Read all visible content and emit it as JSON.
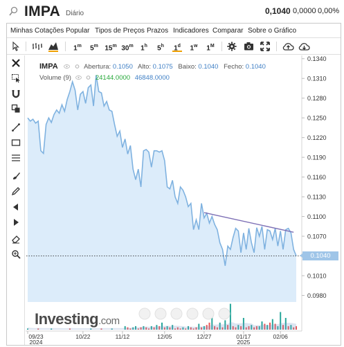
{
  "header": {
    "symbol": "IMPA",
    "period": "Diário",
    "last": "0,1040",
    "change": "0,0000",
    "change_pct": "0,00%"
  },
  "menu": [
    "Minhas Cotações",
    "Popular",
    "Tipos de Preços",
    "Prazos",
    "Indicadores",
    "Comparar",
    "Sobre o Gráfico"
  ],
  "toolbar": {
    "intervals": [
      {
        "n": "1",
        "u": "m"
      },
      {
        "n": "5",
        "u": "m"
      },
      {
        "n": "15",
        "u": "m"
      },
      {
        "n": "30",
        "u": "m"
      },
      {
        "n": "1",
        "u": "h"
      },
      {
        "n": "5",
        "u": "h"
      },
      {
        "n": "1",
        "u": "d"
      },
      {
        "n": "1",
        "u": "w"
      },
      {
        "n": "1",
        "u": "M"
      }
    ],
    "active_interval": "1d"
  },
  "legend": {
    "name": "IMPA",
    "open_label": "Abertura:",
    "open": "0.1050",
    "high_label": "Alto:",
    "high": "0.1075",
    "low_label": "Baixo:",
    "low": "0.1040",
    "close_label": "Fecho:",
    "close": "0.1040",
    "volume_label": "Volume (9)",
    "volume_val1": "24144.0000",
    "volume_val2": "46848.0000"
  },
  "logo": {
    "main": "Investing",
    "suffix": ".com"
  },
  "price_tag": "0.1040",
  "colors": {
    "line": "#7fb2e0",
    "area": "#dcecfa",
    "volume_up": "#26a69a",
    "volume_down": "#ef5350",
    "trendline": "#7d6fb5",
    "price_tag": "#9fc5e8"
  },
  "chart_data": {
    "type": "area",
    "y_ticks": [
      "0.1340",
      "0.1310",
      "0.1280",
      "0.1250",
      "0.1220",
      "0.1190",
      "0.1160",
      "0.1130",
      "0.1100",
      "0.1070",
      "0.1040",
      "0.1010",
      "0.0980"
    ],
    "ylim": [
      0.097,
      0.1345
    ],
    "x_ticks": [
      {
        "label": "09/23",
        "sub": "2024",
        "x": 0
      },
      {
        "label": "10/22",
        "sub": "",
        "x": 21
      },
      {
        "label": "11/12",
        "sub": "",
        "x": 36
      },
      {
        "label": "12/05",
        "sub": "",
        "x": 52
      },
      {
        "label": "12/27",
        "sub": "",
        "x": 67
      },
      {
        "label": "01/17",
        "sub": "2025",
        "x": 82
      },
      {
        "label": "02/06",
        "sub": "",
        "x": 96
      }
    ],
    "x": [
      0,
      1,
      2,
      3,
      4,
      5,
      6,
      7,
      8,
      9,
      10,
      11,
      12,
      13,
      14,
      15,
      16,
      17,
      18,
      19,
      20,
      21,
      22,
      23,
      24,
      25,
      26,
      27,
      28,
      29,
      30,
      31,
      32,
      33,
      34,
      35,
      36,
      37,
      38,
      39,
      40,
      41,
      42,
      43,
      44,
      45,
      46,
      47,
      48,
      49,
      50,
      51,
      52,
      53,
      54,
      55,
      56,
      57,
      58,
      59,
      60,
      61,
      62,
      63,
      64,
      65,
      66,
      67,
      68,
      69,
      70,
      71,
      72,
      73,
      74,
      75,
      76,
      77,
      78,
      79,
      80,
      81,
      82,
      83,
      84,
      85,
      86,
      87,
      88,
      89,
      90,
      91,
      92,
      93,
      94,
      95,
      96,
      97,
      98,
      99,
      100,
      101,
      102
    ],
    "close": [
      0.125,
      0.1245,
      0.1248,
      0.1242,
      0.1245,
      0.12,
      0.1196,
      0.124,
      0.125,
      0.1243,
      0.1255,
      0.1262,
      0.1257,
      0.127,
      0.126,
      0.1278,
      0.129,
      0.1305,
      0.1292,
      0.1262,
      0.1286,
      0.129,
      0.1272,
      0.1296,
      0.13,
      0.1268,
      0.1315,
      0.129,
      0.1288,
      0.1268,
      0.1275,
      0.1262,
      0.126,
      0.124,
      0.1222,
      0.123,
      0.1205,
      0.1218,
      0.1195,
      0.1208,
      0.1172,
      0.1156,
      0.1172,
      0.1145,
      0.12,
      0.1202,
      0.1198,
      0.1175,
      0.12,
      0.12,
      0.1198,
      0.12,
      0.1185,
      0.1145,
      0.1142,
      0.1155,
      0.113,
      0.112,
      0.1145,
      0.114,
      0.113,
      0.1115,
      0.112,
      0.108,
      0.1095,
      0.108,
      0.112,
      0.1098,
      0.1105,
      0.109,
      0.11,
      0.1088,
      0.108,
      0.106,
      0.105,
      0.1025,
      0.1055,
      0.105,
      0.1068,
      0.1082,
      0.1078,
      0.1045,
      0.1075,
      0.105,
      0.1082,
      0.106,
      0.1045,
      0.1083,
      0.107,
      0.1085,
      0.105,
      0.108,
      0.1078,
      0.1065,
      0.1082,
      0.1055,
      0.1078,
      0.105,
      0.108,
      0.1082,
      0.1075,
      0.105,
      0.104
    ],
    "volume": [
      1,
      0,
      0,
      0,
      1,
      0,
      0,
      0,
      0,
      1,
      0,
      0,
      0,
      0,
      0,
      0,
      1,
      0,
      0,
      0,
      0,
      0,
      0,
      0,
      1,
      0,
      0,
      0,
      1,
      0,
      0,
      0,
      1,
      0,
      0,
      0,
      0,
      3,
      2,
      1,
      2,
      3,
      1,
      2,
      3,
      2,
      1,
      3,
      2,
      4,
      3,
      6,
      2,
      3,
      2,
      4,
      1,
      2,
      1,
      2,
      1,
      3,
      2,
      1,
      2,
      5,
      2,
      3,
      4,
      6,
      14,
      3,
      2,
      6,
      2,
      8,
      4,
      22,
      3,
      2,
      4,
      3,
      10,
      2,
      3,
      4,
      2,
      3,
      3,
      7,
      5,
      4,
      6,
      9,
      5,
      3,
      15,
      4,
      10,
      3,
      4,
      2,
      3
    ],
    "volume_up": [
      1,
      0,
      0,
      0,
      0,
      0,
      0,
      0,
      0,
      1,
      0,
      0,
      0,
      0,
      0,
      0,
      0,
      0,
      0,
      0,
      0,
      0,
      0,
      0,
      1,
      0,
      0,
      0,
      0,
      0,
      0,
      0,
      1,
      0,
      0,
      0,
      0,
      1,
      0,
      0,
      1,
      1,
      0,
      0,
      1,
      0,
      0,
      1,
      0,
      1,
      0,
      1,
      0,
      1,
      0,
      1,
      0,
      0,
      0,
      1,
      0,
      1,
      0,
      0,
      0,
      1,
      0,
      1,
      0,
      0,
      1,
      0,
      0,
      1,
      0,
      1,
      0,
      1,
      0,
      0,
      1,
      0,
      1,
      0,
      0,
      1,
      0,
      0,
      1,
      1,
      0,
      1,
      0,
      1,
      0,
      1,
      1,
      0,
      1,
      0,
      1,
      0,
      0
    ],
    "trendline": [
      {
        "x": 67,
        "y": 0.1106
      },
      {
        "x": 101,
        "y": 0.1076
      }
    ],
    "last_price": 0.104
  }
}
